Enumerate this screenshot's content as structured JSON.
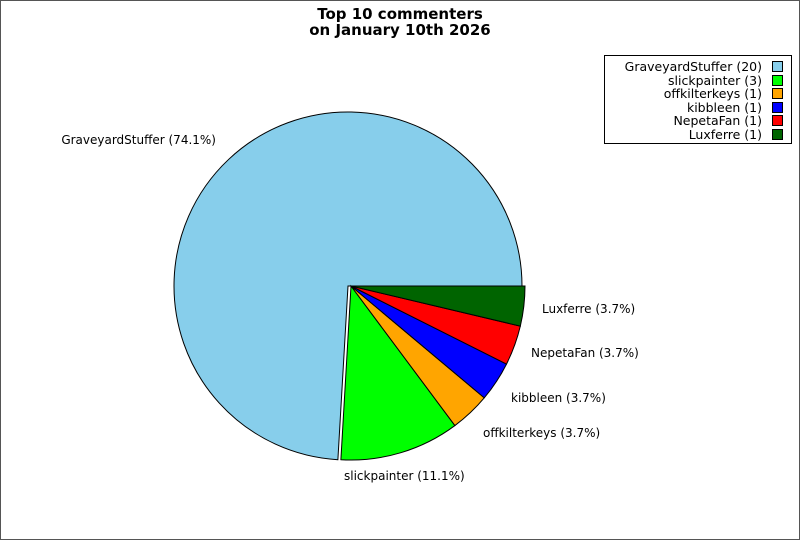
{
  "chart_data": {
    "type": "pie",
    "title": [
      "Top 10 commenters",
      "on January 10th 2026"
    ],
    "slices": [
      {
        "name": "GraveyardStuffer",
        "value": 20,
        "percent_label": "GraveyardStuffer (74.1%)",
        "legend_label": "GraveyardStuffer (20)",
        "color": "#87ceeb"
      },
      {
        "name": "slickpainter",
        "value": 3,
        "percent_label": "slickpainter (11.1%)",
        "legend_label": "slickpainter (3)",
        "color": "#00ff00"
      },
      {
        "name": "offkilterkeys",
        "value": 1,
        "percent_label": "offkilterkeys (3.7%)",
        "legend_label": "offkilterkeys (1)",
        "color": "#ffa500"
      },
      {
        "name": "kibbleen",
        "value": 1,
        "percent_label": "kibbleen (3.7%)",
        "legend_label": "kibbleen (1)",
        "color": "#0000ff"
      },
      {
        "name": "NepetaFan",
        "value": 1,
        "percent_label": "NepetaFan (3.7%)",
        "legend_label": "NepetaFan (1)",
        "color": "#ff0000"
      },
      {
        "name": "Luxferre",
        "value": 1,
        "percent_label": "Luxferre (3.7%)",
        "legend_label": "Luxferre (1)",
        "color": "#006400"
      }
    ],
    "legend_position": "top-right"
  }
}
